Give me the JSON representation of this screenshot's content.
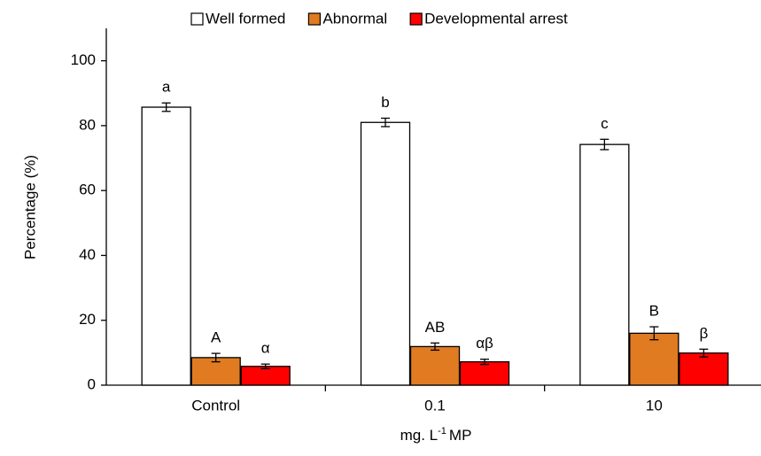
{
  "chart_data": {
    "type": "bar",
    "ylabel": "Percentage (%)",
    "xlabel": {
      "text": "mg. L",
      "superscript": "-1",
      "suffix": "MP"
    },
    "categories": [
      "Control",
      "0.1",
      "10"
    ],
    "series": [
      {
        "name": "Well formed",
        "color": "#ffffff",
        "values": [
          85.7,
          81.0,
          74.2
        ],
        "errors": [
          1.3,
          1.3,
          1.6
        ],
        "annotations": [
          "a",
          "b",
          "c"
        ]
      },
      {
        "name": "Abnormal",
        "color": "#e07b22",
        "values": [
          8.5,
          11.9,
          16.0
        ],
        "errors": [
          1.3,
          1.1,
          2.0
        ],
        "annotations": [
          "A",
          "AB",
          "B"
        ]
      },
      {
        "name": "Developmental arrest",
        "color": "#ff0000",
        "values": [
          5.8,
          7.2,
          9.9
        ],
        "errors": [
          0.7,
          0.8,
          1.2
        ],
        "annotations": [
          "α",
          "αβ",
          "β"
        ]
      }
    ],
    "ylim": [
      0,
      110
    ],
    "yticks": [
      0,
      20,
      40,
      60,
      80,
      100
    ],
    "grid": false,
    "legend": "top"
  }
}
